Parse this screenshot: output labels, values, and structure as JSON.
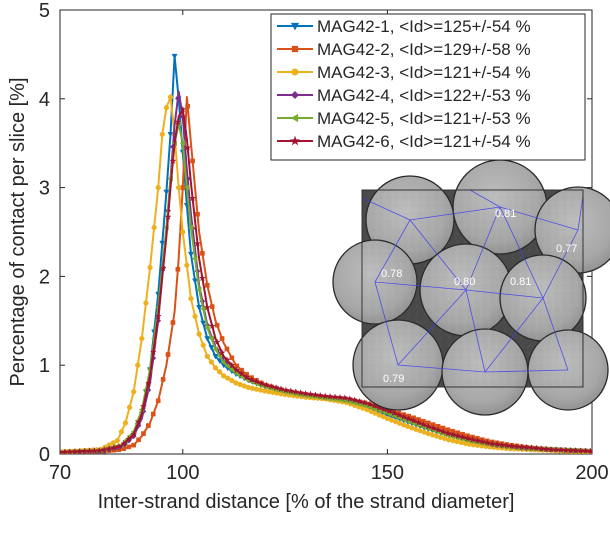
{
  "chart_data": {
    "type": "line",
    "title": "",
    "xlabel": "Inter-strand distance [% of the strand diameter]",
    "ylabel": "Percentage of contact per slice [%]",
    "xlim": [
      70,
      200
    ],
    "ylim": [
      0,
      5
    ],
    "x_ticks": [
      70,
      100,
      150,
      200
    ],
    "y_ticks": [
      0,
      1,
      2,
      3,
      4,
      5
    ],
    "grid": false,
    "legend_position": "top-right",
    "series": [
      {
        "name": "MAG42-1, <Id>=125+/-54 %",
        "color": "#0072BD",
        "marker": "triangle-down",
        "peak_x": 98.2,
        "peak_y": 4.48,
        "x": [
          70,
          80,
          85,
          88,
          90,
          92,
          94,
          96,
          97,
          98,
          99,
          100,
          101,
          102,
          104,
          106,
          108,
          110,
          113,
          116,
          120,
          125,
          130,
          135,
          140,
          145,
          150,
          155,
          160,
          165,
          170,
          175,
          180,
          185,
          190,
          195,
          200
        ],
        "y": [
          0.02,
          0.03,
          0.07,
          0.2,
          0.45,
          0.95,
          1.8,
          2.95,
          3.6,
          4.48,
          4.0,
          3.4,
          2.8,
          2.25,
          1.65,
          1.3,
          1.1,
          1.0,
          0.9,
          0.83,
          0.76,
          0.7,
          0.66,
          0.63,
          0.6,
          0.52,
          0.44,
          0.36,
          0.28,
          0.21,
          0.15,
          0.11,
          0.08,
          0.06,
          0.05,
          0.04,
          0.03
        ]
      },
      {
        "name": "MAG42-2, <Id>=129+/-58 %",
        "color": "#D95319",
        "marker": "square",
        "peak_x": 101.2,
        "peak_y": 4.02,
        "x": [
          70,
          80,
          85,
          88,
          90,
          92,
          94,
          96,
          98,
          99,
          100,
          101,
          102,
          103,
          104,
          106,
          108,
          110,
          113,
          116,
          120,
          125,
          130,
          135,
          140,
          145,
          150,
          155,
          160,
          165,
          170,
          175,
          180,
          185,
          190,
          195,
          200
        ],
        "y": [
          0.02,
          0.03,
          0.05,
          0.1,
          0.2,
          0.35,
          0.6,
          1.0,
          1.6,
          2.2,
          3.0,
          4.02,
          3.5,
          3.0,
          2.5,
          1.9,
          1.5,
          1.25,
          1.0,
          0.88,
          0.78,
          0.71,
          0.67,
          0.64,
          0.62,
          0.57,
          0.5,
          0.43,
          0.35,
          0.27,
          0.2,
          0.14,
          0.1,
          0.07,
          0.05,
          0.04,
          0.03
        ]
      },
      {
        "name": "MAG42-3, <Id>=121+/-54 %",
        "color": "#EDB120",
        "marker": "circle",
        "peak_x": 97.0,
        "peak_y": 4.02,
        "x": [
          70,
          80,
          84,
          86,
          88,
          90,
          92,
          94,
          95,
          96,
          97,
          98,
          99,
          100,
          102,
          104,
          106,
          108,
          110,
          113,
          116,
          120,
          125,
          130,
          135,
          140,
          145,
          150,
          155,
          160,
          165,
          170,
          175,
          180,
          185,
          190,
          195,
          200
        ],
        "y": [
          0.02,
          0.05,
          0.15,
          0.35,
          0.7,
          1.3,
          2.1,
          3.0,
          3.6,
          3.9,
          4.02,
          3.6,
          3.0,
          2.5,
          1.75,
          1.35,
          1.1,
          0.97,
          0.88,
          0.8,
          0.75,
          0.71,
          0.67,
          0.64,
          0.62,
          0.58,
          0.5,
          0.4,
          0.31,
          0.23,
          0.16,
          0.11,
          0.08,
          0.06,
          0.05,
          0.04,
          0.03,
          0.02
        ]
      },
      {
        "name": "MAG42-4, <Id>=122+/-53 %",
        "color": "#7E2F8E",
        "marker": "diamond",
        "peak_x": 99.5,
        "peak_y": 4.08,
        "x": [
          70,
          80,
          85,
          88,
          90,
          92,
          94,
          96,
          97,
          98,
          99,
          100,
          101,
          102,
          104,
          106,
          108,
          110,
          113,
          116,
          120,
          125,
          130,
          135,
          140,
          145,
          150,
          155,
          160,
          165,
          170,
          175,
          180,
          185,
          190,
          195,
          200
        ],
        "y": [
          0.02,
          0.03,
          0.08,
          0.2,
          0.4,
          0.8,
          1.5,
          2.5,
          3.1,
          3.7,
          4.08,
          3.8,
          3.2,
          2.7,
          1.9,
          1.45,
          1.2,
          1.05,
          0.92,
          0.84,
          0.77,
          0.71,
          0.67,
          0.64,
          0.61,
          0.55,
          0.47,
          0.38,
          0.3,
          0.22,
          0.16,
          0.11,
          0.08,
          0.06,
          0.05,
          0.04,
          0.03
        ]
      },
      {
        "name": "MAG42-5, <Id>=121+/-53 %",
        "color": "#77AC30",
        "marker": "triangle-left",
        "peak_x": 99.2,
        "peak_y": 3.72,
        "x": [
          70,
          80,
          85,
          88,
          90,
          92,
          94,
          96,
          97,
          98,
          99,
          100,
          101,
          102,
          104,
          106,
          108,
          110,
          113,
          116,
          120,
          125,
          130,
          135,
          140,
          145,
          150,
          155,
          160,
          165,
          170,
          175,
          180,
          185,
          190,
          195,
          200
        ],
        "y": [
          0.02,
          0.04,
          0.1,
          0.25,
          0.5,
          0.95,
          1.65,
          2.55,
          3.1,
          3.5,
          3.72,
          3.5,
          3.0,
          2.55,
          1.85,
          1.42,
          1.18,
          1.03,
          0.91,
          0.83,
          0.76,
          0.7,
          0.66,
          0.63,
          0.6,
          0.54,
          0.46,
          0.37,
          0.29,
          0.21,
          0.15,
          0.11,
          0.08,
          0.06,
          0.05,
          0.04,
          0.03
        ]
      },
      {
        "name": "MAG42-6, <Id>=121+/-54 %",
        "color": "#A2142F",
        "marker": "star",
        "peak_x": 99.8,
        "peak_y": 3.88,
        "x": [
          70,
          80,
          85,
          88,
          90,
          92,
          94,
          96,
          97,
          98,
          99,
          100,
          101,
          102,
          104,
          106,
          108,
          110,
          113,
          116,
          120,
          125,
          130,
          135,
          140,
          145,
          150,
          155,
          160,
          165,
          170,
          175,
          180,
          185,
          190,
          195,
          200
        ],
        "y": [
          0.02,
          0.04,
          0.09,
          0.22,
          0.45,
          0.88,
          1.55,
          2.45,
          3.0,
          3.5,
          3.8,
          3.88,
          3.55,
          3.05,
          2.2,
          1.65,
          1.3,
          1.1,
          0.95,
          0.85,
          0.78,
          0.72,
          0.68,
          0.65,
          0.63,
          0.57,
          0.49,
          0.4,
          0.31,
          0.23,
          0.17,
          0.12,
          0.09,
          0.07,
          0.05,
          0.04,
          0.03
        ]
      }
    ],
    "inset": {
      "description_labels": [
        "0.81",
        "0.77",
        "0.78",
        "0.80",
        "0.81",
        "0.79"
      ]
    }
  }
}
